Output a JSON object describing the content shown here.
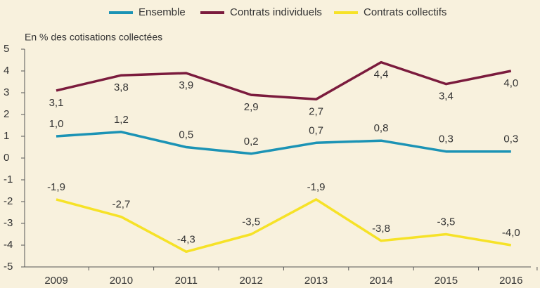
{
  "chart_data": {
    "type": "line",
    "ylabel": "En % des cotisations collectées",
    "categories": [
      "2009",
      "2010",
      "2011",
      "2012",
      "2013",
      "2014",
      "2015",
      "2016"
    ],
    "series": [
      {
        "name": "Ensemble",
        "color": "#1b93b5",
        "values": [
          1.0,
          1.2,
          0.5,
          0.2,
          0.7,
          0.8,
          0.3,
          0.3
        ],
        "value_labels": [
          "1,0",
          "1,2",
          "0,5",
          "0,2",
          "0,7",
          "0,8",
          "0,3",
          "0,3"
        ]
      },
      {
        "name": "Contrats individuels",
        "color": "#7b1b3d",
        "values": [
          3.1,
          3.8,
          3.9,
          2.9,
          2.7,
          4.4,
          3.4,
          4.0
        ],
        "value_labels": [
          "3,1",
          "3,8",
          "3,9",
          "2,9",
          "2,7",
          "4,4",
          "3,4",
          "4,0"
        ]
      },
      {
        "name": "Contrats collectifs",
        "color": "#f6e227",
        "values": [
          -1.9,
          -2.7,
          -4.3,
          -3.5,
          -1.9,
          -3.8,
          -3.5,
          -4.0
        ],
        "value_labels": [
          "-1,9",
          "-2,7",
          "-4,3",
          "-3,5",
          "-1,9",
          "-3,8",
          "-3,5",
          "-4,0"
        ]
      }
    ],
    "ylim": [
      -5,
      5
    ],
    "yticks": [
      5,
      4,
      3,
      2,
      1,
      0,
      -1,
      -2,
      -3,
      -4,
      -5
    ],
    "grid": false,
    "legend": "top"
  }
}
